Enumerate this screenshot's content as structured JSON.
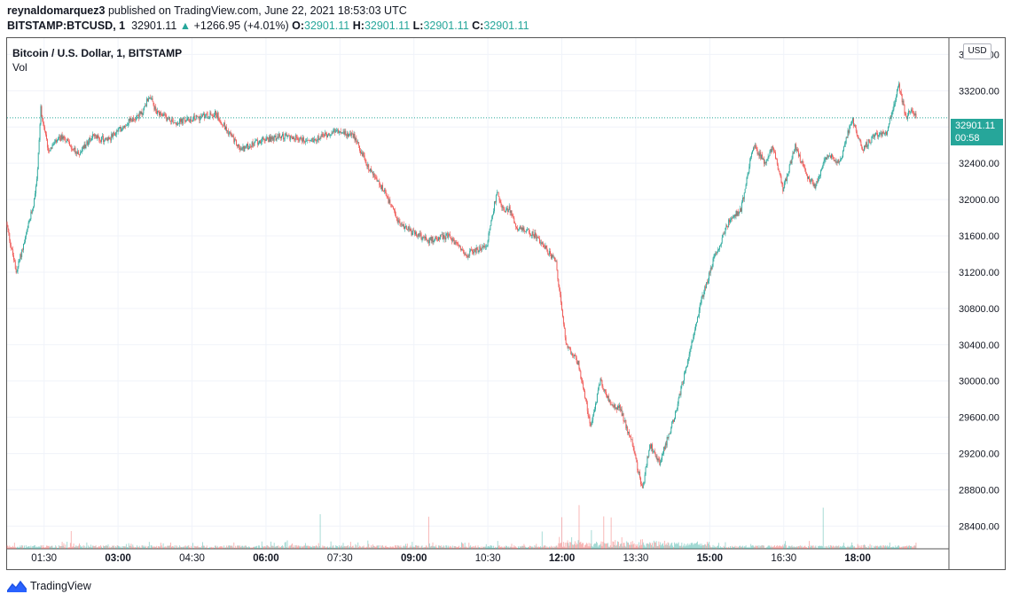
{
  "header": {
    "publisher": "reynaldomarquez3",
    "published_text": " published on TradingView.com, June 22, 2021 18:53:03 UTC",
    "symbol": "BITSTAMP:BTCUSD, 1",
    "last": "32901.11",
    "change": "+1266.95 (+4.01%)",
    "o_label": "O:",
    "o": "32901.11",
    "h_label": "H:",
    "h": "32901.11",
    "l_label": "L:",
    "l": "32901.11",
    "c_label": "C:",
    "c": "32901.11"
  },
  "legend": {
    "title": "Bitcoin / U.S. Dollar, 1, BITSTAMP",
    "vol": "Vol"
  },
  "currency": "USD",
  "price_tag": {
    "price": "32901.11",
    "countdown": "00:58"
  },
  "brand": {
    "name": "TradingView"
  },
  "colors": {
    "up": "#26a69a",
    "down": "#ef5350",
    "grid": "#f0f3fa",
    "axis_text": "#131722"
  },
  "icons": {
    "change_arrow": "triangle-up-icon",
    "logo": "tradingview-logo-icon"
  },
  "chart_data": {
    "type": "candlestick",
    "interval": "1",
    "x_tick_labels": [
      "01:30",
      "03:00",
      "04:30",
      "06:00",
      "07:30",
      "09:00",
      "10:30",
      "12:00",
      "13:30",
      "15:00",
      "16:30",
      "18:00"
    ],
    "x_tick_bold": [
      false,
      true,
      false,
      true,
      false,
      true,
      false,
      true,
      false,
      true,
      false,
      true
    ],
    "y_tick_labels": [
      "33600.00",
      "33200.00",
      "32800.00",
      "32400.00",
      "32000.00",
      "31600.00",
      "31200.00",
      "30800.00",
      "30400.00",
      "30000.00",
      "29600.00",
      "29200.00",
      "28800.00",
      "28400.00"
    ],
    "y_ticks": [
      33600,
      33200,
      32800,
      32400,
      32000,
      31600,
      31200,
      30800,
      30400,
      30000,
      29600,
      29200,
      28800,
      28400
    ],
    "ylim": [
      28150,
      33780
    ],
    "x_range_hours": [
      0.75,
      19.85
    ],
    "last_price": 32901.11,
    "price_path": {
      "hours": [
        0.75,
        0.95,
        1.15,
        1.3,
        1.38,
        1.45,
        1.6,
        1.9,
        2.2,
        2.5,
        2.8,
        3.2,
        3.5,
        3.65,
        3.8,
        4.2,
        4.6,
        5.0,
        5.5,
        5.9,
        6.4,
        6.9,
        7.4,
        7.8,
        8.1,
        8.4,
        8.7,
        8.95,
        9.3,
        9.7,
        10.1,
        10.5,
        10.7,
        10.85,
        10.95,
        11.1,
        11.5,
        11.9,
        12.0,
        12.1,
        12.35,
        12.6,
        12.8,
        13.0,
        13.2,
        13.45,
        13.65,
        13.8,
        14.0,
        14.3,
        14.6,
        14.85,
        15.1,
        15.4,
        15.65,
        15.9,
        16.15,
        16.3,
        16.5,
        16.75,
        16.95,
        17.15,
        17.4,
        17.65,
        17.9,
        18.1,
        18.35,
        18.6,
        18.85,
        19.0,
        19.1,
        19.2
      ],
      "prices": [
        31750,
        31200,
        31600,
        31950,
        32300,
        33000,
        32550,
        32700,
        32500,
        32700,
        32650,
        32850,
        32950,
        33150,
        32950,
        32850,
        32900,
        32950,
        32550,
        32650,
        32700,
        32650,
        32750,
        32700,
        32350,
        32100,
        31750,
        31650,
        31550,
        31600,
        31400,
        31500,
        32100,
        31850,
        31900,
        31700,
        31600,
        31300,
        30850,
        30400,
        30200,
        29500,
        30000,
        29750,
        29700,
        29300,
        28800,
        29300,
        29100,
        29600,
        30300,
        30900,
        31350,
        31750,
        31900,
        32600,
        32400,
        32600,
        32100,
        32600,
        32300,
        32150,
        32500,
        32400,
        32900,
        32550,
        32700,
        32750,
        33250,
        32900,
        33000,
        32901
      ]
    },
    "volume_spikes_hours": [
      2.05,
      7.1,
      9.3,
      11.6,
      12.0,
      12.35,
      12.6,
      12.85,
      13.0,
      17.3
    ]
  }
}
